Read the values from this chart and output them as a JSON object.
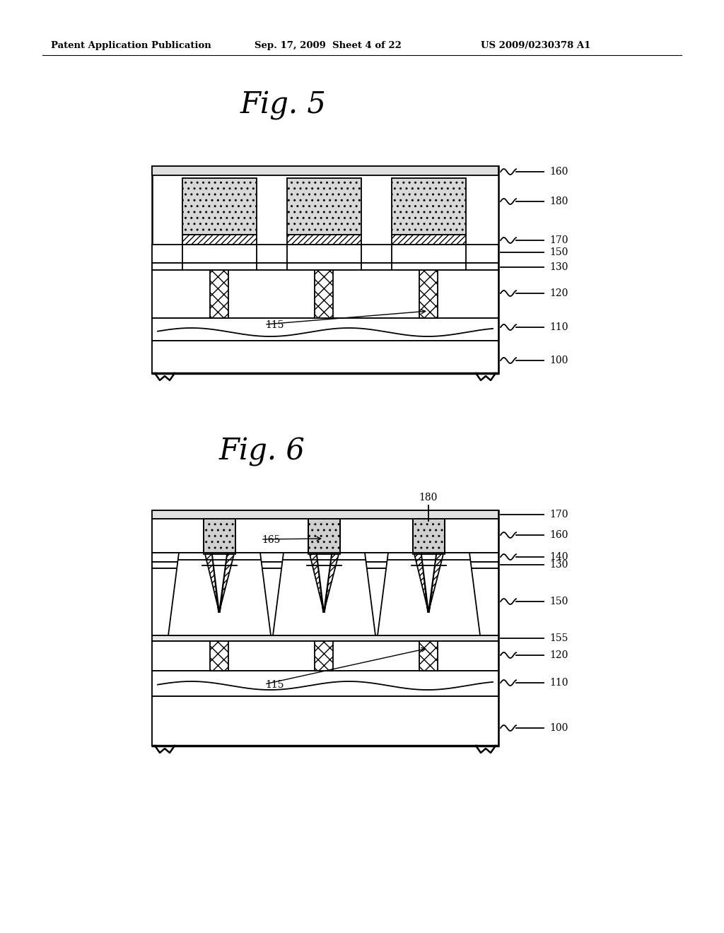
{
  "header_left": "Patent Application Publication",
  "header_center": "Sep. 17, 2009  Sheet 4 of 22",
  "header_right": "US 2009/0230378 A1",
  "fig5_title": "Fig. 5",
  "fig6_title": "Fig. 6",
  "bg_color": "#ffffff"
}
